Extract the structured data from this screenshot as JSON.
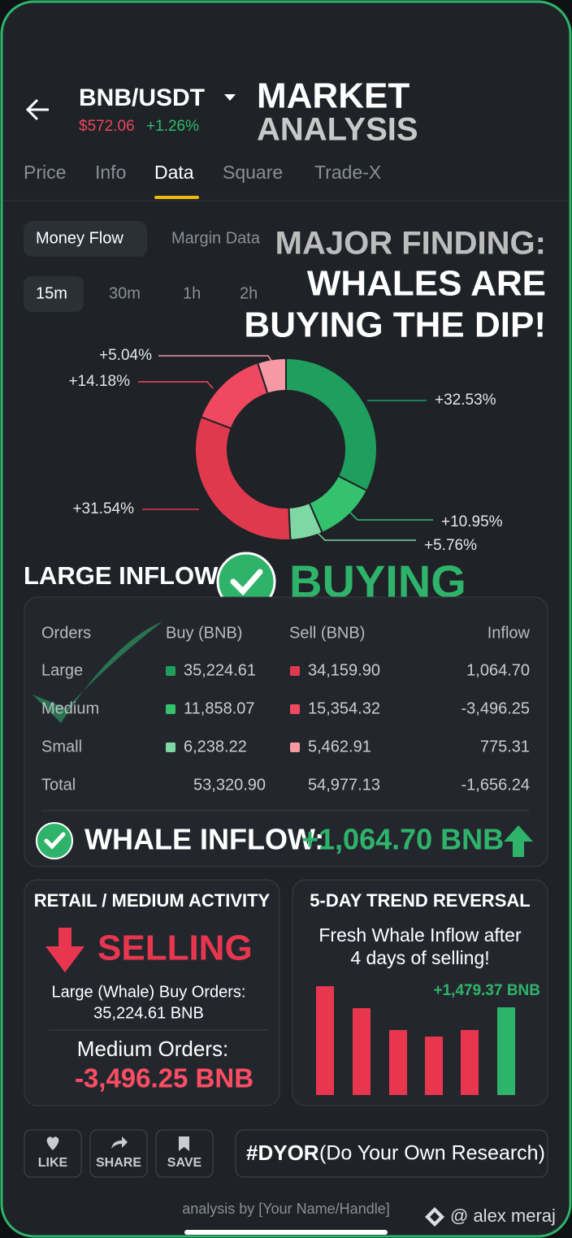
{
  "header": {
    "pair": "BNB/USDT",
    "price": "$572.06",
    "change": "+1.26%",
    "overlay_title": [
      "MARKET",
      "ANALYSIS"
    ]
  },
  "tabs": [
    "Price",
    "Info",
    "Data",
    "Square",
    "Trade-X"
  ],
  "subtabs": [
    "Money Flow",
    "Margin Data"
  ],
  "intervals": [
    "15m",
    "30m",
    "1h",
    "2h"
  ],
  "headline": [
    "MAJOR FINDING:",
    "WHALES ARE",
    "BUYING THE DIP!"
  ],
  "chart_data": [
    {
      "type": "pie",
      "donut": true,
      "values": [
        32.53,
        10.95,
        5.76,
        31.54,
        14.18,
        5.04
      ],
      "value_labels": [
        "+32.53%",
        "+10.95%",
        "+5.76%",
        "+31.54%",
        "+14.18%",
        "+5.04%"
      ],
      "colors": [
        "#1f9e5e",
        "#34c26f",
        "#7fd8a4",
        "#e0394e",
        "#f0485e",
        "#f59aa5"
      ]
    },
    {
      "type": "bar",
      "title": "5-DAY TREND REVERSAL",
      "subtitle": [
        "Fresh Whale Inflow after",
        "4 days of selling!"
      ],
      "categories": [
        null,
        null,
        null,
        null,
        null,
        null
      ],
      "values": [
        1836,
        1465,
        1096,
        986,
        1096,
        1479.37
      ],
      "value_labels": [
        null,
        null,
        null,
        null,
        null,
        "+1,479.37 BNB"
      ],
      "colors": [
        "#e8364f",
        "#e8364f",
        "#e8364f",
        "#e8364f",
        "#e8364f",
        "#2eb36b"
      ]
    }
  ],
  "large_inflow": {
    "label": "LARGE INFLOW",
    "status": "BUYING"
  },
  "table": {
    "header": [
      "Orders",
      "Buy (BNB)",
      "Sell (BNB)",
      "Inflow"
    ],
    "rows": [
      [
        "Large",
        "35,224.61",
        "34,159.90",
        "1,064.70"
      ],
      [
        "Medium",
        "11,858.07",
        "15,354.32",
        "-3,496.25"
      ],
      [
        "Small",
        "6,238.22",
        "5,462.91",
        "775.31"
      ],
      [
        "Total",
        "53,320.90",
        "54,977.13",
        "-1,656.24"
      ]
    ]
  },
  "whale_inflow": {
    "label": "WHALE INFLOW:",
    "value": "+1,064.70 BNB"
  },
  "retail": {
    "title": "RETAIL / MEDIUM ACTIVITY",
    "status": "SELLING",
    "line1": "Large (Whale) Buy Orders:",
    "line2": "35,224.61 BNB",
    "line3": "Medium Orders:",
    "line4": "-3,496.25 BNB"
  },
  "actions": [
    "LIKE",
    "SHARE",
    "SAVE"
  ],
  "dyor": {
    "tag": "#DYOR",
    "text": "(Do Your Own Research)"
  },
  "footer": {
    "credit": "analysis by [Your Name/Handle]",
    "watermark": "@ alex meraj"
  }
}
